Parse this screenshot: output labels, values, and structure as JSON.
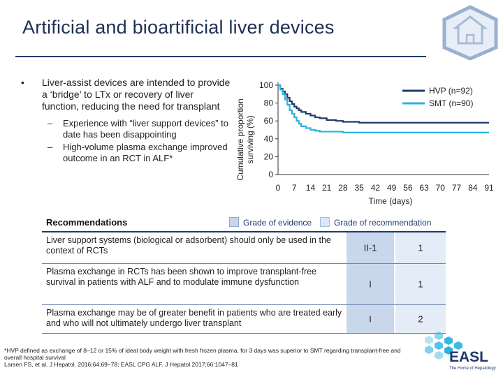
{
  "slide": {
    "title": "Artificial and bioartificial liver devices"
  },
  "bullets": {
    "main_marker": "•",
    "main": "Liver-assist devices are intended to provide a ‘bridge’ to LTx or recovery of liver function, reducing the need for transplant",
    "sub_marker": "–",
    "sub": [
      "Experience with “liver support devices” to date has been disappointing",
      "High-volume plasma exchange improved outcome in an RCT in ALF*"
    ]
  },
  "chart_data": {
    "type": "line",
    "ylabel": "Cumulative proportion surviving (%)",
    "xlabel": "Time (days)",
    "ylim": [
      0,
      100
    ],
    "xlim": [
      0,
      91
    ],
    "y_ticks": [
      0,
      20,
      40,
      60,
      80,
      100
    ],
    "x_ticks": [
      0,
      7,
      14,
      21,
      28,
      35,
      42,
      49,
      56,
      63,
      70,
      77,
      84,
      91
    ],
    "legend_position": "top-right",
    "series": [
      {
        "name": "HVP (n=92)",
        "color": "#1e3a6b",
        "x": [
          0,
          1,
          2,
          3,
          4,
          5,
          6,
          7,
          8,
          9,
          10,
          12,
          14,
          16,
          18,
          21,
          25,
          28,
          35,
          42,
          49,
          56,
          63,
          70,
          77,
          91
        ],
        "y": [
          100,
          96,
          93,
          90,
          86,
          82,
          79,
          76,
          74,
          72,
          70,
          68,
          66,
          64,
          63,
          61,
          60,
          59,
          58,
          58,
          58,
          58,
          58,
          58,
          58,
          58
        ]
      },
      {
        "name": "SMT (n=90)",
        "color": "#2ab3e0",
        "x": [
          0,
          1,
          2,
          3,
          4,
          5,
          6,
          7,
          8,
          9,
          10,
          12,
          14,
          16,
          18,
          21,
          25,
          28,
          35,
          42,
          49,
          56,
          63,
          70,
          77,
          91
        ],
        "y": [
          100,
          95,
          90,
          84,
          78,
          72,
          68,
          64,
          60,
          57,
          54,
          52,
          50,
          49,
          48,
          48,
          48,
          47,
          47,
          47,
          47,
          47,
          47,
          47,
          47,
          47
        ]
      }
    ]
  },
  "recommendations": {
    "title": "Recommendations",
    "legend_evidence": "Grade of evidence",
    "legend_recommendation": "Grade of recommendation",
    "rows": [
      {
        "text": "Liver support systems (biological or adsorbent) should only be used in the context of RCTs",
        "evidence": "II-1",
        "grade": "1"
      },
      {
        "text": "Plasma exchange in RCTs has been shown to improve transplant-free survival in patients with ALF and to modulate immune dysfunction",
        "evidence": "I",
        "grade": "1"
      },
      {
        "text": "Plasma exchange may be of greater benefit in patients who are treated early and who will not ultimately undergo liver transplant",
        "evidence": "I",
        "grade": "2"
      }
    ]
  },
  "footnote": {
    "line1": "*HVP defined as exchange of 8–12 or 15% of ideal body weight with fresh frozen plasma, for 3 days was superior to SMT regarding transplant-free and overall hospital survival",
    "line2": "Larsen FS, et al. J Hepatol. 2016;64:69–78; EASL CPG ALF. J Hepatol 2017;66:1047–81"
  },
  "logo": {
    "text": "EASL",
    "tagline": "The Home of Hepatology",
    "icon": "home-icon",
    "colors": {
      "accent": "#2ab3e0",
      "navy": "#1e3a6b"
    }
  }
}
